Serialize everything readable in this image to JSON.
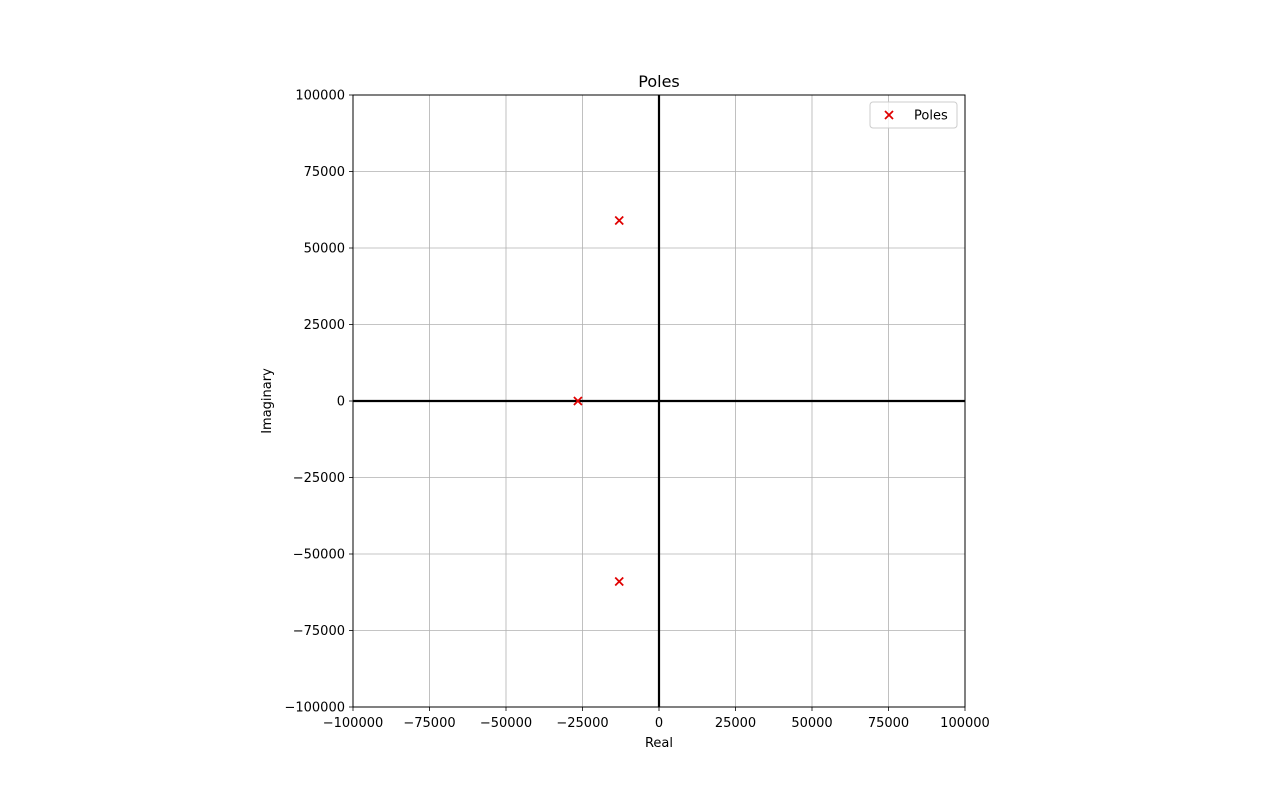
{
  "chart_data": {
    "type": "scatter",
    "title": "Poles",
    "xlabel": "Real",
    "ylabel": "Imaginary",
    "xlim": [
      -100000,
      100000
    ],
    "ylim": [
      -100000,
      100000
    ],
    "xticks": [
      -100000,
      -75000,
      -50000,
      -25000,
      0,
      25000,
      50000,
      75000,
      100000
    ],
    "yticks": [
      -100000,
      -75000,
      -50000,
      -25000,
      0,
      25000,
      50000,
      75000,
      100000
    ],
    "xtick_labels": [
      "−100000",
      "−75000",
      "−50000",
      "−25000",
      "0",
      "25000",
      "50000",
      "75000",
      "100000"
    ],
    "ytick_labels": [
      "−100000",
      "−75000",
      "−50000",
      "−25000",
      "0",
      "25000",
      "50000",
      "75000",
      "100000"
    ],
    "grid": true,
    "legend_position": "top-right",
    "series": [
      {
        "name": "Poles",
        "marker": "x",
        "color": "#e00000",
        "points": [
          {
            "x": -13000,
            "y": 59000
          },
          {
            "x": -26500,
            "y": 0
          },
          {
            "x": -13000,
            "y": -59000
          }
        ]
      }
    ]
  }
}
